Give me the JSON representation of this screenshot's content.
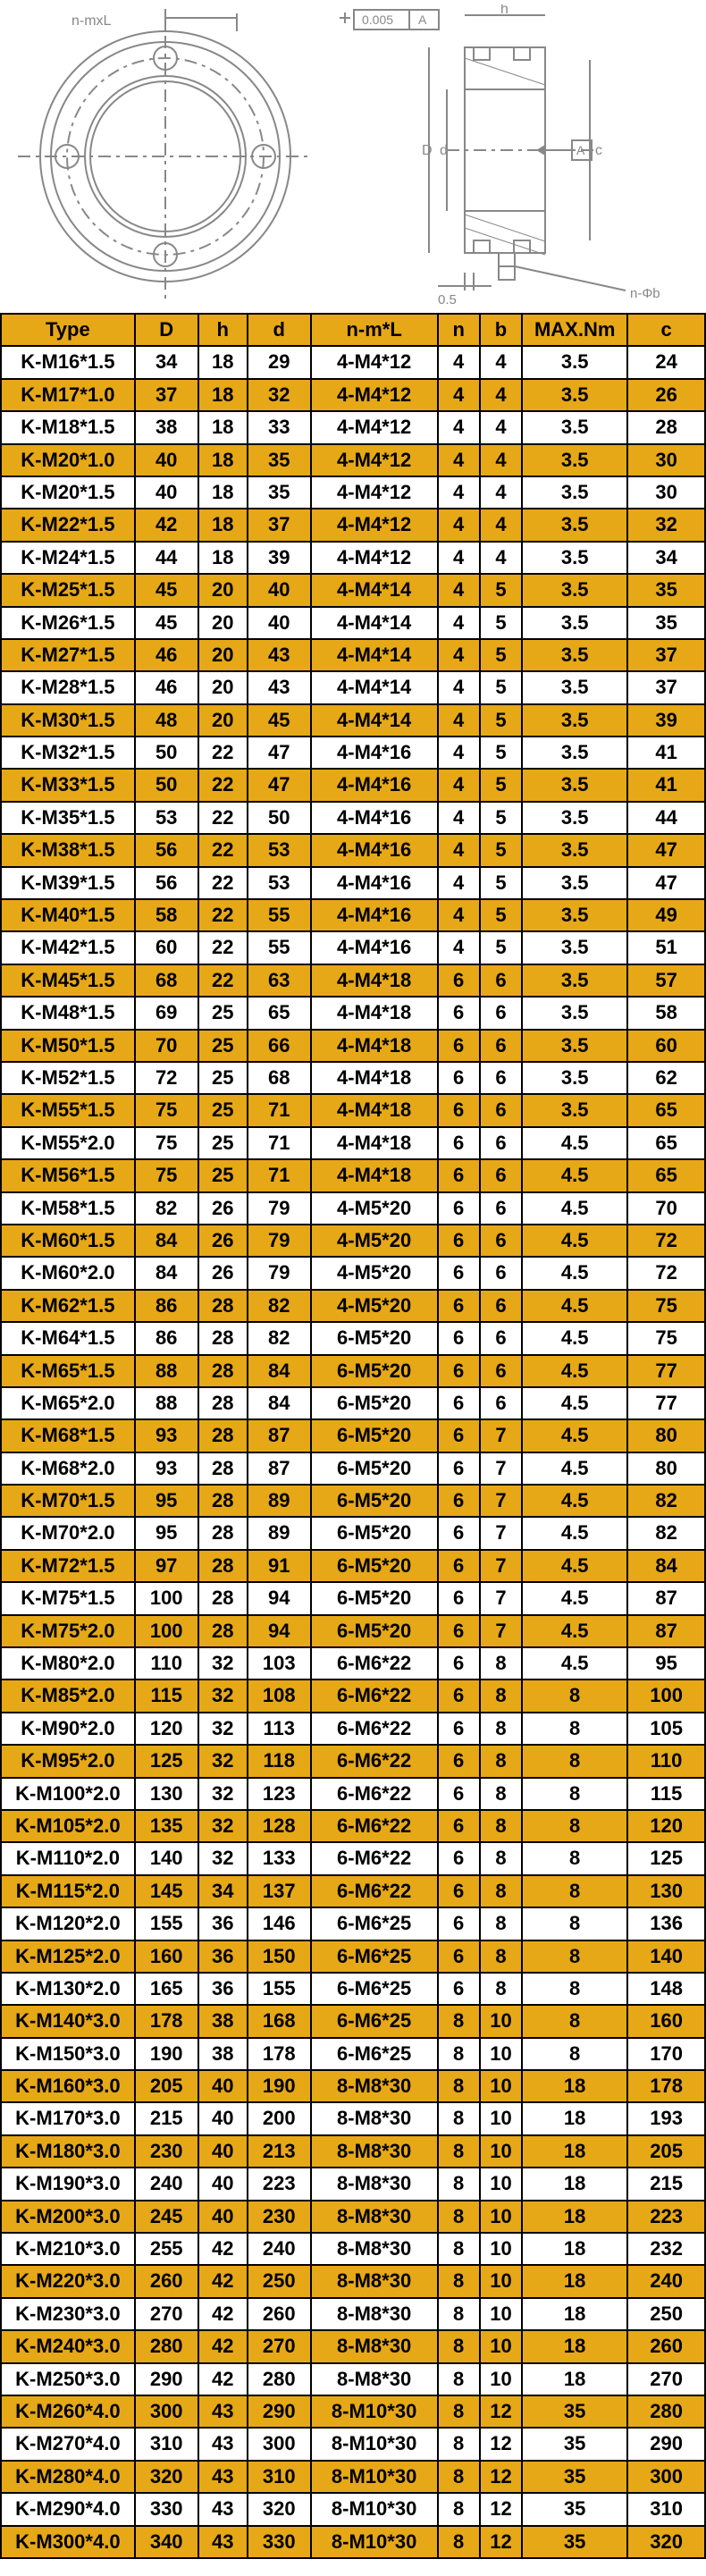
{
  "headers": [
    "Type",
    "D",
    "h",
    "d",
    "n-m*L",
    "n",
    "b",
    "MAX.Nm",
    "c"
  ],
  "rows": [
    [
      "K-M16*1.5",
      "34",
      "18",
      "29",
      "4-M4*12",
      "4",
      "4",
      "3.5",
      "24"
    ],
    [
      "K-M17*1.0",
      "37",
      "18",
      "32",
      "4-M4*12",
      "4",
      "4",
      "3.5",
      "26"
    ],
    [
      "K-M18*1.5",
      "38",
      "18",
      "33",
      "4-M4*12",
      "4",
      "4",
      "3.5",
      "28"
    ],
    [
      "K-M20*1.0",
      "40",
      "18",
      "35",
      "4-M4*12",
      "4",
      "4",
      "3.5",
      "30"
    ],
    [
      "K-M20*1.5",
      "40",
      "18",
      "35",
      "4-M4*12",
      "4",
      "4",
      "3.5",
      "30"
    ],
    [
      "K-M22*1.5",
      "42",
      "18",
      "37",
      "4-M4*12",
      "4",
      "4",
      "3.5",
      "32"
    ],
    [
      "K-M24*1.5",
      "44",
      "18",
      "39",
      "4-M4*12",
      "4",
      "4",
      "3.5",
      "34"
    ],
    [
      "K-M25*1.5",
      "45",
      "20",
      "40",
      "4-M4*14",
      "4",
      "5",
      "3.5",
      "35"
    ],
    [
      "K-M26*1.5",
      "45",
      "20",
      "40",
      "4-M4*14",
      "4",
      "5",
      "3.5",
      "35"
    ],
    [
      "K-M27*1.5",
      "46",
      "20",
      "43",
      "4-M4*14",
      "4",
      "5",
      "3.5",
      "37"
    ],
    [
      "K-M28*1.5",
      "46",
      "20",
      "43",
      "4-M4*14",
      "4",
      "5",
      "3.5",
      "37"
    ],
    [
      "K-M30*1.5",
      "48",
      "20",
      "45",
      "4-M4*14",
      "4",
      "5",
      "3.5",
      "39"
    ],
    [
      "K-M32*1.5",
      "50",
      "22",
      "47",
      "4-M4*16",
      "4",
      "5",
      "3.5",
      "41"
    ],
    [
      "K-M33*1.5",
      "50",
      "22",
      "47",
      "4-M4*16",
      "4",
      "5",
      "3.5",
      "41"
    ],
    [
      "K-M35*1.5",
      "53",
      "22",
      "50",
      "4-M4*16",
      "4",
      "5",
      "3.5",
      "44"
    ],
    [
      "K-M38*1.5",
      "56",
      "22",
      "53",
      "4-M4*16",
      "4",
      "5",
      "3.5",
      "47"
    ],
    [
      "K-M39*1.5",
      "56",
      "22",
      "53",
      "4-M4*16",
      "4",
      "5",
      "3.5",
      "47"
    ],
    [
      "K-M40*1.5",
      "58",
      "22",
      "55",
      "4-M4*16",
      "4",
      "5",
      "3.5",
      "49"
    ],
    [
      "K-M42*1.5",
      "60",
      "22",
      "55",
      "4-M4*16",
      "4",
      "5",
      "3.5",
      "51"
    ],
    [
      "K-M45*1.5",
      "68",
      "22",
      "63",
      "4-M4*18",
      "6",
      "6",
      "3.5",
      "57"
    ],
    [
      "K-M48*1.5",
      "69",
      "25",
      "65",
      "4-M4*18",
      "6",
      "6",
      "3.5",
      "58"
    ],
    [
      "K-M50*1.5",
      "70",
      "25",
      "66",
      "4-M4*18",
      "6",
      "6",
      "3.5",
      "60"
    ],
    [
      "K-M52*1.5",
      "72",
      "25",
      "68",
      "4-M4*18",
      "6",
      "6",
      "3.5",
      "62"
    ],
    [
      "K-M55*1.5",
      "75",
      "25",
      "71",
      "4-M4*18",
      "6",
      "6",
      "3.5",
      "65"
    ],
    [
      "K-M55*2.0",
      "75",
      "25",
      "71",
      "4-M4*18",
      "6",
      "6",
      "4.5",
      "65"
    ],
    [
      "K-M56*1.5",
      "75",
      "25",
      "71",
      "4-M4*18",
      "6",
      "6",
      "4.5",
      "65"
    ],
    [
      "K-M58*1.5",
      "82",
      "26",
      "79",
      "4-M5*20",
      "6",
      "6",
      "4.5",
      "70"
    ],
    [
      "K-M60*1.5",
      "84",
      "26",
      "79",
      "4-M5*20",
      "6",
      "6",
      "4.5",
      "72"
    ],
    [
      "K-M60*2.0",
      "84",
      "26",
      "79",
      "4-M5*20",
      "6",
      "6",
      "4.5",
      "72"
    ],
    [
      "K-M62*1.5",
      "86",
      "28",
      "82",
      "4-M5*20",
      "6",
      "6",
      "4.5",
      "75"
    ],
    [
      "K-M64*1.5",
      "86",
      "28",
      "82",
      "6-M5*20",
      "6",
      "6",
      "4.5",
      "75"
    ],
    [
      "K-M65*1.5",
      "88",
      "28",
      "84",
      "6-M5*20",
      "6",
      "6",
      "4.5",
      "77"
    ],
    [
      "K-M65*2.0",
      "88",
      "28",
      "84",
      "6-M5*20",
      "6",
      "6",
      "4.5",
      "77"
    ],
    [
      "K-M68*1.5",
      "93",
      "28",
      "87",
      "6-M5*20",
      "6",
      "7",
      "4.5",
      "80"
    ],
    [
      "K-M68*2.0",
      "93",
      "28",
      "87",
      "6-M5*20",
      "6",
      "7",
      "4.5",
      "80"
    ],
    [
      "K-M70*1.5",
      "95",
      "28",
      "89",
      "6-M5*20",
      "6",
      "7",
      "4.5",
      "82"
    ],
    [
      "K-M70*2.0",
      "95",
      "28",
      "89",
      "6-M5*20",
      "6",
      "7",
      "4.5",
      "82"
    ],
    [
      "K-M72*1.5",
      "97",
      "28",
      "91",
      "6-M5*20",
      "6",
      "7",
      "4.5",
      "84"
    ],
    [
      "K-M75*1.5",
      "100",
      "28",
      "94",
      "6-M5*20",
      "6",
      "7",
      "4.5",
      "87"
    ],
    [
      "K-M75*2.0",
      "100",
      "28",
      "94",
      "6-M5*20",
      "6",
      "7",
      "4.5",
      "87"
    ],
    [
      "K-M80*2.0",
      "110",
      "32",
      "103",
      "6-M6*22",
      "6",
      "8",
      "4.5",
      "95"
    ],
    [
      "K-M85*2.0",
      "115",
      "32",
      "108",
      "6-M6*22",
      "6",
      "8",
      "8",
      "100"
    ],
    [
      "K-M90*2.0",
      "120",
      "32",
      "113",
      "6-M6*22",
      "6",
      "8",
      "8",
      "105"
    ],
    [
      "K-M95*2.0",
      "125",
      "32",
      "118",
      "6-M6*22",
      "6",
      "8",
      "8",
      "110"
    ],
    [
      "K-M100*2.0",
      "130",
      "32",
      "123",
      "6-M6*22",
      "6",
      "8",
      "8",
      "115"
    ],
    [
      "K-M105*2.0",
      "135",
      "32",
      "128",
      "6-M6*22",
      "6",
      "8",
      "8",
      "120"
    ],
    [
      "K-M110*2.0",
      "140",
      "32",
      "133",
      "6-M6*22",
      "6",
      "8",
      "8",
      "125"
    ],
    [
      "K-M115*2.0",
      "145",
      "34",
      "137",
      "6-M6*22",
      "6",
      "8",
      "8",
      "130"
    ],
    [
      "K-M120*2.0",
      "155",
      "36",
      "146",
      "6-M6*25",
      "6",
      "8",
      "8",
      "136"
    ],
    [
      "K-M125*2.0",
      "160",
      "36",
      "150",
      "6-M6*25",
      "6",
      "8",
      "8",
      "140"
    ],
    [
      "K-M130*2.0",
      "165",
      "36",
      "155",
      "6-M6*25",
      "6",
      "8",
      "8",
      "148"
    ],
    [
      "K-M140*3.0",
      "178",
      "38",
      "168",
      "6-M6*25",
      "8",
      "10",
      "8",
      "160"
    ],
    [
      "K-M150*3.0",
      "190",
      "38",
      "178",
      "6-M6*25",
      "8",
      "10",
      "8",
      "170"
    ],
    [
      "K-M160*3.0",
      "205",
      "40",
      "190",
      "8-M8*30",
      "8",
      "10",
      "18",
      "178"
    ],
    [
      "K-M170*3.0",
      "215",
      "40",
      "200",
      "8-M8*30",
      "8",
      "10",
      "18",
      "193"
    ],
    [
      "K-M180*3.0",
      "230",
      "40",
      "213",
      "8-M8*30",
      "8",
      "10",
      "18",
      "205"
    ],
    [
      "K-M190*3.0",
      "240",
      "40",
      "223",
      "8-M8*30",
      "8",
      "10",
      "18",
      "215"
    ],
    [
      "K-M200*3.0",
      "245",
      "40",
      "230",
      "8-M8*30",
      "8",
      "10",
      "18",
      "223"
    ],
    [
      "K-M210*3.0",
      "255",
      "42",
      "240",
      "8-M8*30",
      "8",
      "10",
      "18",
      "232"
    ],
    [
      "K-M220*3.0",
      "260",
      "42",
      "250",
      "8-M8*30",
      "8",
      "10",
      "18",
      "240"
    ],
    [
      "K-M230*3.0",
      "270",
      "42",
      "260",
      "8-M8*30",
      "8",
      "10",
      "18",
      "250"
    ],
    [
      "K-M240*3.0",
      "280",
      "42",
      "270",
      "8-M8*30",
      "8",
      "10",
      "18",
      "260"
    ],
    [
      "K-M250*3.0",
      "290",
      "42",
      "280",
      "8-M8*30",
      "8",
      "10",
      "18",
      "270"
    ],
    [
      "K-M260*4.0",
      "300",
      "43",
      "290",
      "8-M10*30",
      "8",
      "12",
      "35",
      "280"
    ],
    [
      "K-M270*4.0",
      "310",
      "43",
      "300",
      "8-M10*30",
      "8",
      "12",
      "35",
      "290"
    ],
    [
      "K-M280*4.0",
      "320",
      "43",
      "310",
      "8-M10*30",
      "8",
      "12",
      "35",
      "300"
    ],
    [
      "K-M290*4.0",
      "330",
      "43",
      "320",
      "8-M10*30",
      "8",
      "12",
      "35",
      "310"
    ],
    [
      "K-M300*4.0",
      "340",
      "43",
      "330",
      "8-M10*30",
      "8",
      "12",
      "35",
      "320"
    ]
  ],
  "diagram_labels": {
    "nmxl": "n-mxL",
    "tol_box": "0.005",
    "tol_letter": "A",
    "h": "h",
    "D": "D",
    "d": "d",
    "c": "c",
    "datum": "A",
    "zeroFive": "0.5",
    "nphib": "n-Φb"
  }
}
